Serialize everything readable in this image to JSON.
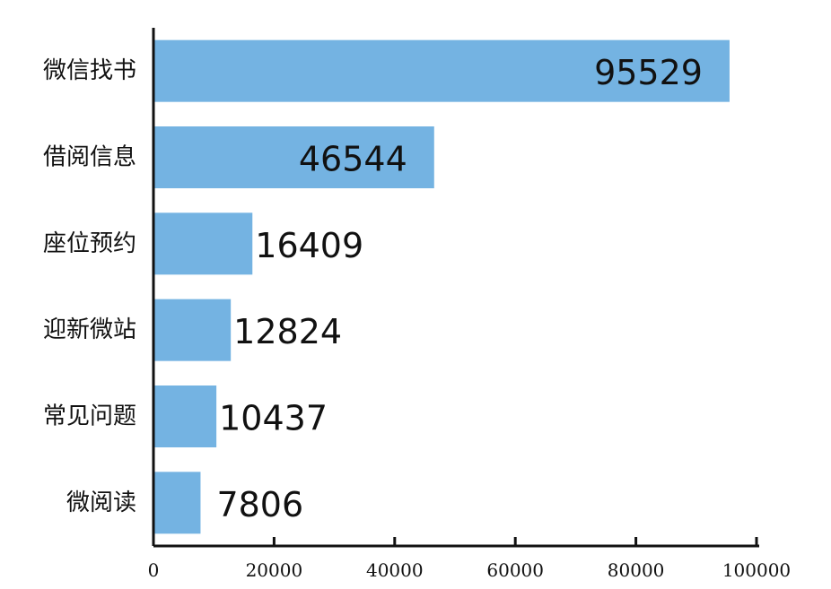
{
  "chart_data": {
    "type": "bar",
    "orientation": "horizontal",
    "categories": [
      "微信找书",
      "借阅信息",
      "座位预约",
      "迎新微站",
      "常见问题",
      "微阅读"
    ],
    "values": [
      95529,
      46544,
      16409,
      12824,
      10437,
      7806
    ],
    "value_labels": [
      "95529",
      "46544",
      "16409",
      "12824",
      "10437",
      "7806"
    ],
    "xlim": [
      0,
      100000
    ],
    "x_ticks": [
      0,
      20000,
      40000,
      60000,
      80000,
      100000
    ],
    "x_tick_labels": [
      "0",
      "20000",
      "40000",
      "60000",
      "80000",
      "100000"
    ],
    "title": "",
    "xlabel": "",
    "ylabel": "",
    "grid": false,
    "bar_color": "#74b3e2"
  }
}
